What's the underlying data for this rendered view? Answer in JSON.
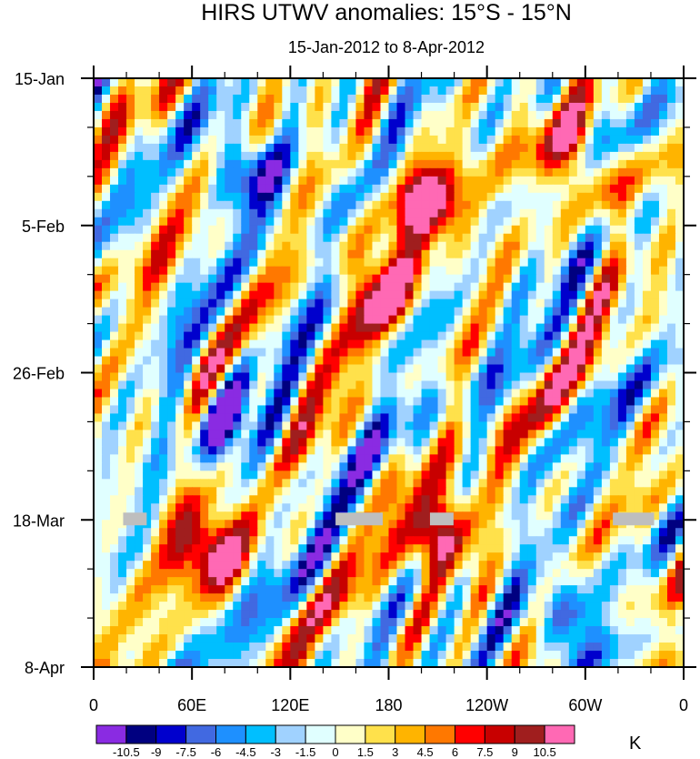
{
  "chart_data": {
    "type": "heatmap",
    "title": "HIRS UTWV anomalies: 15°S - 15°N",
    "subtitle": "15-Jan-2012 to 8-Apr-2012",
    "xlabel": "",
    "ylabel": "",
    "x_ticks": [
      "0",
      "60E",
      "120E",
      "180",
      "120W",
      "60W",
      "0"
    ],
    "x_tick_values_deg": [
      0,
      60,
      120,
      180,
      240,
      300,
      360
    ],
    "y_ticks": [
      "15-Jan",
      "5-Feb",
      "26-Feb",
      "18-Mar",
      "8-Apr"
    ],
    "y_tick_values_day": [
      0,
      21,
      42,
      63,
      84
    ],
    "xlim_deg": [
      0,
      360
    ],
    "ylim_day": [
      0,
      84
    ],
    "units": "K",
    "colorbar": {
      "levels": [
        "-10.5",
        "-9",
        "-7.5",
        "-6",
        "-4.5",
        "-3",
        "-1.5",
        "0",
        "1.5",
        "3",
        "4.5",
        "6",
        "7.5",
        "9",
        "10.5"
      ],
      "colors": [
        "#8a2be2",
        "#000080",
        "#0000cd",
        "#4169e1",
        "#1e90ff",
        "#00bfff",
        "#a0d2ff",
        "#e0ffff",
        "#ffffc8",
        "#ffe14b",
        "#ffb400",
        "#ff7800",
        "#ff0000",
        "#c80000",
        "#a01e1e",
        "#ff69b4"
      ]
    },
    "missing_data_color": "#bebebe",
    "features": [
      {
        "name": "positive anomaly",
        "lon": 205,
        "day": 18,
        "value": 11
      },
      {
        "name": "positive anomaly",
        "lon": 175,
        "day": 30,
        "value": 9
      },
      {
        "name": "positive anomaly",
        "lon": 210,
        "day": 65,
        "value": 11
      },
      {
        "name": "positive anomaly",
        "lon": 70,
        "day": 67,
        "value": 11
      },
      {
        "name": "positive anomaly",
        "lon": 295,
        "day": 12,
        "value": 9
      },
      {
        "name": "negative anomaly",
        "lon": 92,
        "day": 13,
        "value": -9
      },
      {
        "name": "negative anomaly",
        "lon": 85,
        "day": 50,
        "value": -8
      },
      {
        "name": "negative anomaly",
        "lon": 290,
        "day": 78,
        "value": -8
      }
    ]
  }
}
